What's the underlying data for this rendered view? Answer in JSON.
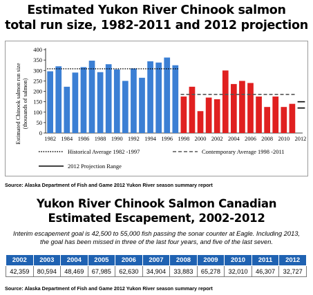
{
  "title1_line1": "Estimated Yukon River Chinook salmon",
  "title1_line2": "total run size, 1982-2011 and 2012 projection",
  "source1": "Source: Alaska Department of Fish and Game 2012 Yukon River season summary report",
  "chart_data": {
    "type": "bar",
    "ylabel_line1": "Estimated Chinook salmon run size",
    "ylabel_line2": "(thousands of salmon)",
    "ylim": [
      0,
      400
    ],
    "yticks": [
      0,
      50,
      100,
      150,
      200,
      250,
      300,
      350,
      400
    ],
    "xticks": [
      "1982",
      "1984",
      "1986",
      "1988",
      "1990",
      "1992",
      "1994",
      "1996",
      "1998",
      "2000",
      "2002",
      "2004",
      "2006",
      "2008",
      "2010",
      "2012"
    ],
    "categories": [
      "1982",
      "1983",
      "1984",
      "1985",
      "1986",
      "1987",
      "1988",
      "1989",
      "1990",
      "1991",
      "1992",
      "1993",
      "1994",
      "1995",
      "1996",
      "1997",
      "1998",
      "1999",
      "2000",
      "2001",
      "2002",
      "2003",
      "2004",
      "2005",
      "2006",
      "2007",
      "2008",
      "2009",
      "2010",
      "2011"
    ],
    "series": [
      {
        "color": "#3b7fd4",
        "values": [
          296,
          320,
          222,
          290,
          316,
          347,
          292,
          330,
          305,
          250,
          310,
          265,
          344,
          338,
          362,
          325,
          null,
          null,
          null,
          null,
          null,
          null,
          null,
          null,
          null,
          null,
          null,
          null,
          null,
          null
        ]
      },
      {
        "color": "#e02020",
        "values": [
          null,
          null,
          null,
          null,
          null,
          null,
          null,
          null,
          null,
          null,
          null,
          null,
          null,
          null,
          null,
          null,
          175,
          222,
          105,
          170,
          162,
          300,
          235,
          250,
          240,
          175,
          125,
          175,
          125,
          140
        ]
      }
    ],
    "historical_average": 308,
    "contemporary_average": 185,
    "projection_range": [
      150,
      120
    ],
    "legend": [
      {
        "label": "Historical Average 1982 -1997",
        "style": "dotted"
      },
      {
        "label": "Contemporary Average 1998 -2011",
        "style": "dashed"
      },
      {
        "label": "2012 Projection Range",
        "style": "solid"
      }
    ]
  },
  "title2_line1": "Yukon River Chinook Salmon Canadian",
  "title2_line2": "Estimated Escapement, 2002-2012",
  "note_line1": "Interim escapement goal is 42,500 to 55,000 fish passing the sonar counter at Eagle. Including 2013,",
  "note_line2": "the goal has been missed in three of the last four years, and five of the last seven.",
  "table": {
    "years": [
      "2002",
      "2003",
      "2004",
      "2005",
      "2006",
      "2007",
      "2008",
      "2009",
      "2010",
      "2011",
      "2012"
    ],
    "values": [
      "42,359",
      "80,594",
      "48,469",
      "67,985",
      "62,630",
      "34,904",
      "33,883",
      "65,278",
      "32,010",
      "46,307",
      "32,727"
    ]
  },
  "source2": "Source: Alaska Department of Fish and Game 2012 Yukon River season summary report"
}
